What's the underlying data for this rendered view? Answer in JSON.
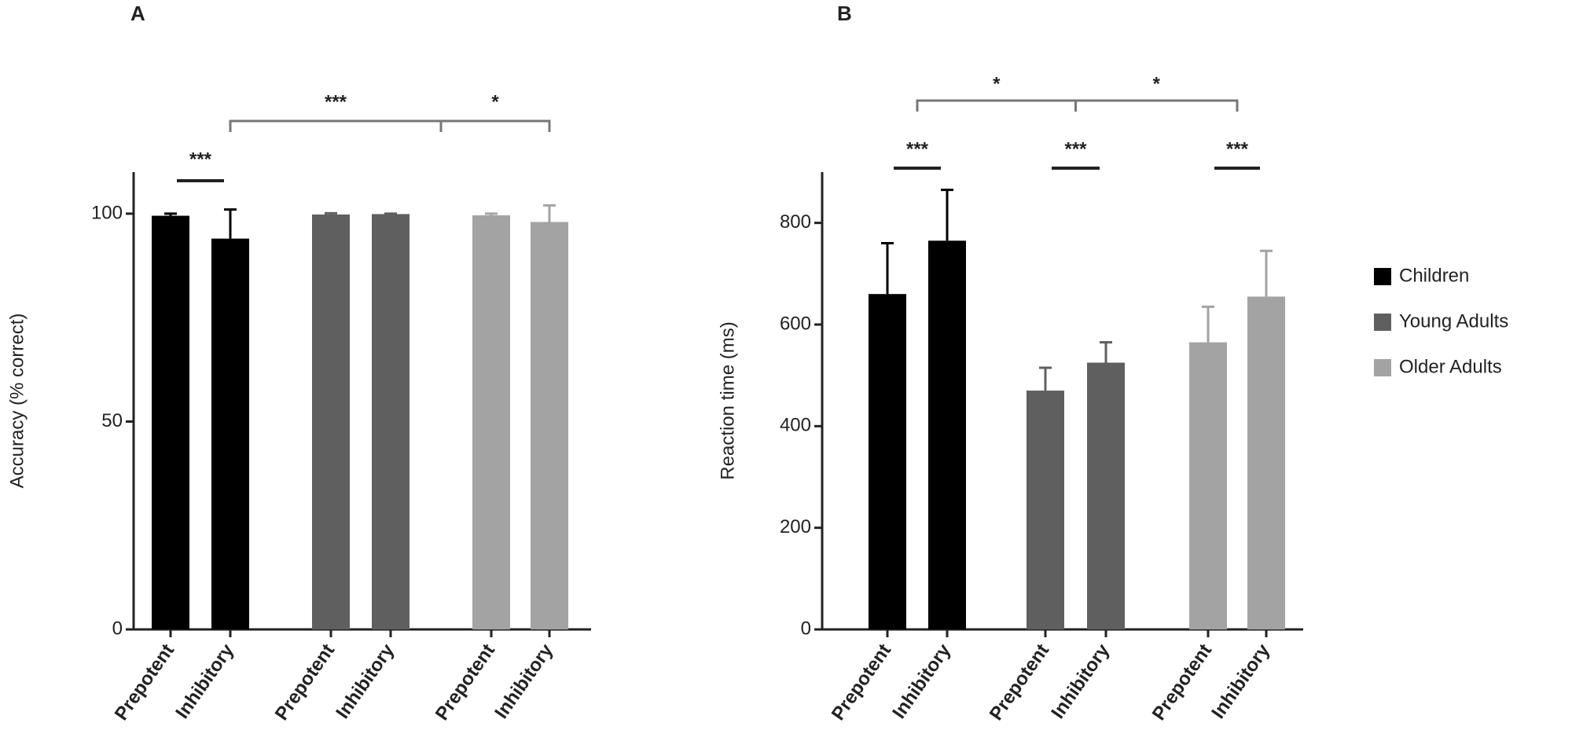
{
  "chart_data": [
    {
      "type": "bar",
      "title": "A",
      "y_label": "Accuracy (% correct)",
      "categories": [
        "Prepotent",
        "Inhibitory",
        "Prepotent",
        "Inhibitory",
        "Prepotent",
        "Inhibitory"
      ],
      "series": [
        {
          "color": "#000000",
          "values": [
            99.5,
            94,
            null,
            null,
            null,
            null
          ],
          "errors": [
            0.5,
            7,
            null,
            null,
            null,
            null
          ]
        },
        {
          "color": "#5f5f5f",
          "values": [
            null,
            null,
            99.8,
            99.9,
            null,
            null
          ],
          "errors": [
            null,
            null,
            0.3,
            0.1,
            null,
            null
          ]
        },
        {
          "color": "#a3a3a3",
          "values": [
            null,
            null,
            null,
            null,
            99.6,
            98
          ],
          "errors": [
            null,
            null,
            null,
            null,
            0.4,
            4
          ]
        }
      ],
      "ylim": [
        0,
        110
      ],
      "yticks": [
        0,
        50,
        100
      ],
      "annotations": [
        "***",
        "***",
        "*"
      ]
    },
    {
      "type": "bar",
      "title": "B",
      "y_label": "Reaction time (ms)",
      "categories": [
        "Prepotent",
        "Inhibitory",
        "Prepotent",
        "Inhibitory",
        "Prepotent",
        "Inhibitory"
      ],
      "series": [
        {
          "name": "Children",
          "color": "#000000",
          "values": [
            660,
            765,
            null,
            null,
            null,
            null
          ],
          "errors": [
            100,
            100,
            null,
            null,
            null,
            null
          ]
        },
        {
          "name": "Young Adults",
          "color": "#5f5f5f",
          "values": [
            null,
            null,
            470,
            525,
            null,
            null
          ],
          "errors": [
            null,
            null,
            45,
            40,
            null,
            null
          ]
        },
        {
          "name": "Older Adults",
          "color": "#a3a3a3",
          "values": [
            null,
            null,
            null,
            null,
            565,
            655
          ],
          "errors": [
            null,
            null,
            null,
            null,
            70,
            90
          ]
        }
      ],
      "ylim": [
        0,
        900
      ],
      "yticks": [
        0,
        200,
        400,
        600,
        800
      ],
      "annotations": [
        "***",
        "***",
        "***",
        "*",
        "*"
      ],
      "legend": "right"
    }
  ]
}
